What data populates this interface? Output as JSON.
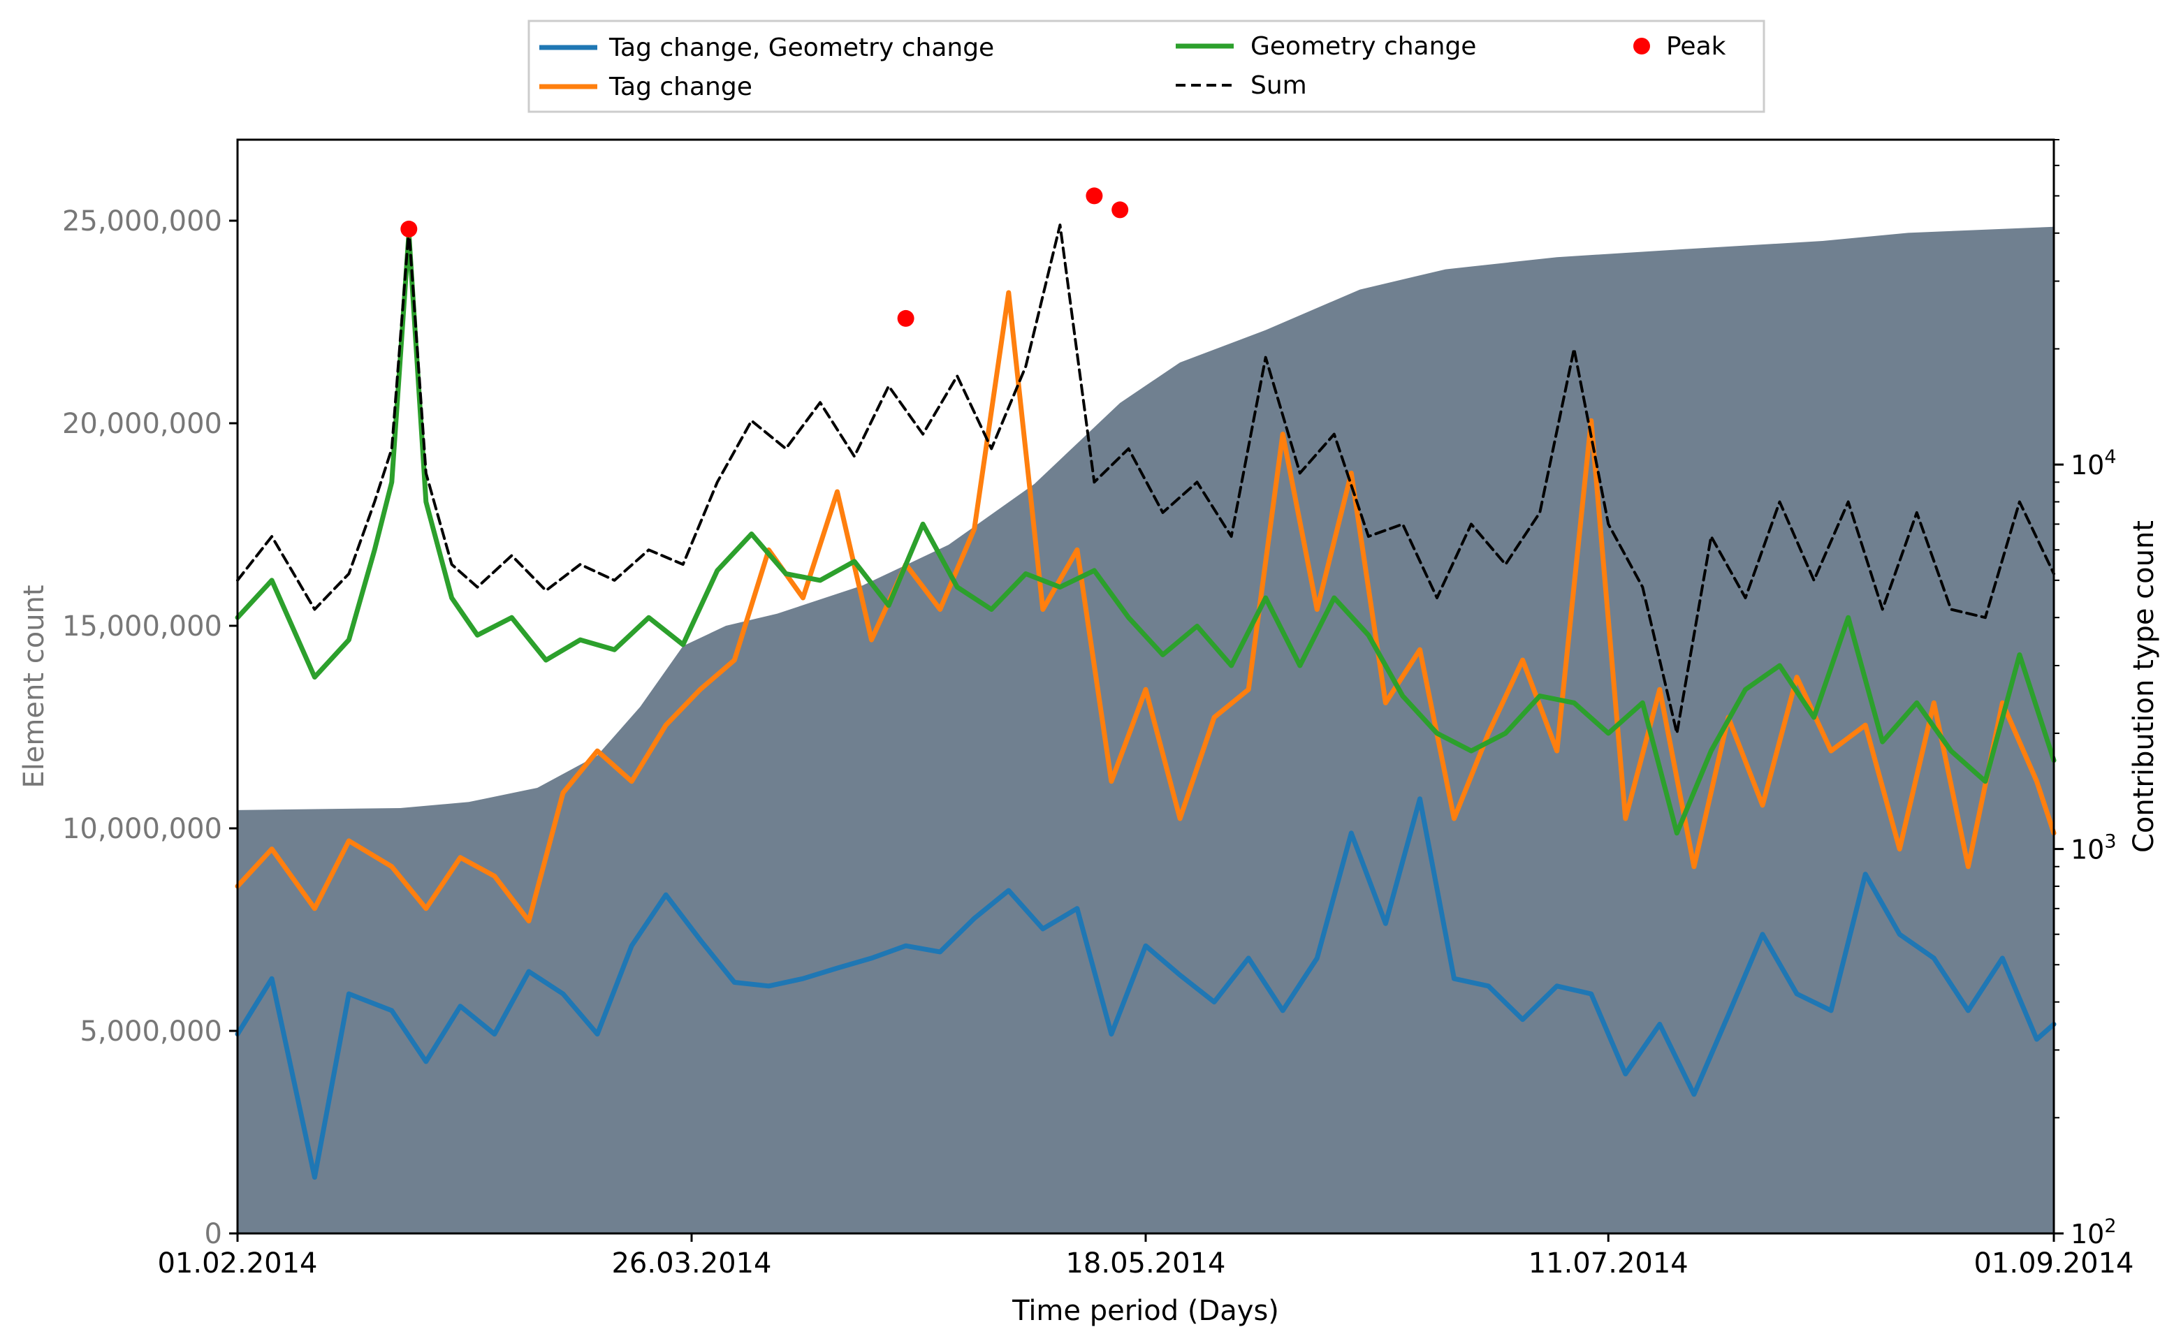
{
  "chart_data": {
    "type": "line",
    "title": "",
    "xlabel": "Time period (Days)",
    "ylabel_left": "Element count",
    "ylabel_right": "Contribution type count",
    "x_start": "01.02.2014",
    "x_end": "01.09.2014",
    "x_ticks": [
      "01.02.2014",
      "26.03.2014",
      "18.05.2014",
      "11.07.2014",
      "01.09.2014"
    ],
    "y_left_lim": [
      0,
      27000000
    ],
    "y_left_ticks": [
      0,
      5000000,
      10000000,
      15000000,
      20000000,
      25000000
    ],
    "y_left_tick_labels": [
      "0",
      "5,000,000",
      "10,000,000",
      "15,000,000",
      "20,000,000",
      "25,000,000"
    ],
    "y_right_scale": "log",
    "y_right_lim": [
      100,
      70000
    ],
    "y_right_ticks": [
      100,
      1000,
      10000
    ],
    "y_right_tick_labels": [
      {
        "base": "10",
        "exp": "2"
      },
      {
        "base": "10",
        "exp": "3"
      },
      {
        "base": "10",
        "exp": "4"
      }
    ],
    "legend": {
      "placement": "top, above plot",
      "entries": [
        {
          "label": "Tag change, Geometry change",
          "kind": "line",
          "color": "#1f77b4"
        },
        {
          "label": "Geometry change",
          "kind": "line",
          "color": "#2ca02c"
        },
        {
          "label": "Peak",
          "kind": "marker",
          "color": "#ff0000"
        },
        {
          "label": "Tag change",
          "kind": "line",
          "color": "#ff7f0e"
        },
        {
          "label": "Sum",
          "kind": "dashed",
          "color": "#000000"
        }
      ]
    },
    "area": {
      "name": "Element count",
      "axis": "left",
      "color": "#708090",
      "points": [
        [
          "01.02.2014",
          10450000
        ],
        [
          "20.02.2014",
          10500000
        ],
        [
          "28.02.2014",
          10650000
        ],
        [
          "08.03.2014",
          11000000
        ],
        [
          "15.03.2014",
          11800000
        ],
        [
          "20.03.2014",
          13000000
        ],
        [
          "25.03.2014",
          14500000
        ],
        [
          "30.03.2014",
          15000000
        ],
        [
          "05.04.2014",
          15300000
        ],
        [
          "15.04.2014",
          16000000
        ],
        [
          "25.04.2014",
          17000000
        ],
        [
          "05.05.2014",
          18500000
        ],
        [
          "15.05.2014",
          20500000
        ],
        [
          "22.05.2014",
          21500000
        ],
        [
          "01.06.2014",
          22300000
        ],
        [
          "12.06.2014",
          23300000
        ],
        [
          "22.06.2014",
          23800000
        ],
        [
          "05.07.2014",
          24100000
        ],
        [
          "20.07.2014",
          24300000
        ],
        [
          "05.08.2014",
          24500000
        ],
        [
          "15.08.2014",
          24700000
        ],
        [
          "01.09.2014",
          24850000
        ]
      ]
    },
    "series": [
      {
        "name": "Tag change, Geometry change",
        "axis": "right",
        "color": "#1f77b4",
        "style": "solid",
        "points": [
          [
            "01.02.2014",
            330
          ],
          [
            "05.02.2014",
            460
          ],
          [
            "10.02.2014",
            140
          ],
          [
            "14.02.2014",
            420
          ],
          [
            "19.02.2014",
            380
          ],
          [
            "23.02.2014",
            280
          ],
          [
            "27.02.2014",
            390
          ],
          [
            "03.03.2014",
            330
          ],
          [
            "07.03.2014",
            480
          ],
          [
            "11.03.2014",
            420
          ],
          [
            "15.03.2014",
            330
          ],
          [
            "19.03.2014",
            560
          ],
          [
            "23.03.2014",
            760
          ],
          [
            "27.03.2014",
            580
          ],
          [
            "31.03.2014",
            450
          ],
          [
            "04.04.2014",
            440
          ],
          [
            "08.04.2014",
            460
          ],
          [
            "12.04.2014",
            490
          ],
          [
            "16.04.2014",
            520
          ],
          [
            "20.04.2014",
            560
          ],
          [
            "24.04.2014",
            540
          ],
          [
            "28.04.2014",
            660
          ],
          [
            "02.05.2014",
            780
          ],
          [
            "06.05.2014",
            620
          ],
          [
            "10.05.2014",
            700
          ],
          [
            "14.05.2014",
            330
          ],
          [
            "18.05.2014",
            560
          ],
          [
            "22.05.2014",
            470
          ],
          [
            "26.05.2014",
            400
          ],
          [
            "30.05.2014",
            520
          ],
          [
            "03.06.2014",
            380
          ],
          [
            "07.06.2014",
            520
          ],
          [
            "11.06.2014",
            1100
          ],
          [
            "15.06.2014",
            640
          ],
          [
            "19.06.2014",
            1350
          ],
          [
            "23.06.2014",
            460
          ],
          [
            "27.06.2014",
            440
          ],
          [
            "01.07.2014",
            360
          ],
          [
            "05.07.2014",
            440
          ],
          [
            "09.07.2014",
            420
          ],
          [
            "13.07.2014",
            260
          ],
          [
            "17.07.2014",
            350
          ],
          [
            "21.07.2014",
            230
          ],
          [
            "25.07.2014",
            370
          ],
          [
            "29.07.2014",
            600
          ],
          [
            "02.08.2014",
            420
          ],
          [
            "06.08.2014",
            380
          ],
          [
            "10.08.2014",
            860
          ],
          [
            "14.08.2014",
            600
          ],
          [
            "18.08.2014",
            520
          ],
          [
            "22.08.2014",
            380
          ],
          [
            "26.08.2014",
            520
          ],
          [
            "30.08.2014",
            320
          ],
          [
            "01.09.2014",
            350
          ]
        ]
      },
      {
        "name": "Tag change",
        "axis": "right",
        "color": "#ff7f0e",
        "style": "solid",
        "points": [
          [
            "01.02.2014",
            800
          ],
          [
            "05.02.2014",
            1000
          ],
          [
            "10.02.2014",
            700
          ],
          [
            "14.02.2014",
            1050
          ],
          [
            "19.02.2014",
            900
          ],
          [
            "23.02.2014",
            700
          ],
          [
            "27.02.2014",
            950
          ],
          [
            "03.03.2014",
            850
          ],
          [
            "07.03.2014",
            650
          ],
          [
            "11.03.2014",
            1400
          ],
          [
            "15.03.2014",
            1800
          ],
          [
            "19.03.2014",
            1500
          ],
          [
            "23.03.2014",
            2100
          ],
          [
            "27.03.2014",
            2600
          ],
          [
            "31.03.2014",
            3100
          ],
          [
            "04.04.2014",
            6000
          ],
          [
            "08.04.2014",
            4500
          ],
          [
            "12.04.2014",
            8500
          ],
          [
            "16.04.2014",
            3500
          ],
          [
            "20.04.2014",
            5500
          ],
          [
            "24.04.2014",
            4200
          ],
          [
            "28.04.2014",
            6800
          ],
          [
            "02.05.2014",
            28000
          ],
          [
            "06.05.2014",
            4200
          ],
          [
            "10.05.2014",
            6000
          ],
          [
            "14.05.2014",
            1500
          ],
          [
            "18.05.2014",
            2600
          ],
          [
            "22.05.2014",
            1200
          ],
          [
            "26.05.2014",
            2200
          ],
          [
            "30.05.2014",
            2600
          ],
          [
            "03.06.2014",
            12000
          ],
          [
            "07.06.2014",
            4200
          ],
          [
            "11.06.2014",
            9500
          ],
          [
            "15.06.2014",
            2400
          ],
          [
            "19.06.2014",
            3300
          ],
          [
            "23.06.2014",
            1200
          ],
          [
            "27.06.2014",
            2000
          ],
          [
            "01.07.2014",
            3100
          ],
          [
            "05.07.2014",
            1800
          ],
          [
            "09.07.2014",
            13000
          ],
          [
            "13.07.2014",
            1200
          ],
          [
            "17.07.2014",
            2600
          ],
          [
            "21.07.2014",
            900
          ],
          [
            "25.07.2014",
            2200
          ],
          [
            "29.07.2014",
            1300
          ],
          [
            "02.08.2014",
            2800
          ],
          [
            "06.08.2014",
            1800
          ],
          [
            "10.08.2014",
            2100
          ],
          [
            "14.08.2014",
            1000
          ],
          [
            "18.08.2014",
            2400
          ],
          [
            "22.08.2014",
            900
          ],
          [
            "26.08.2014",
            2400
          ],
          [
            "30.08.2014",
            1500
          ],
          [
            "01.09.2014",
            1100
          ]
        ]
      },
      {
        "name": "Geometry change",
        "axis": "right",
        "color": "#2ca02c",
        "style": "solid",
        "points": [
          [
            "01.02.2014",
            4000
          ],
          [
            "05.02.2014",
            5000
          ],
          [
            "10.02.2014",
            2800
          ],
          [
            "14.02.2014",
            3500
          ],
          [
            "17.02.2014",
            6000
          ],
          [
            "19.02.2014",
            9000
          ],
          [
            "21.02.2014",
            40000
          ],
          [
            "23.02.2014",
            8000
          ],
          [
            "26.02.2014",
            4500
          ],
          [
            "01.03.2014",
            3600
          ],
          [
            "05.03.2014",
            4000
          ],
          [
            "09.03.2014",
            3100
          ],
          [
            "13.03.2014",
            3500
          ],
          [
            "17.03.2014",
            3300
          ],
          [
            "21.03.2014",
            4000
          ],
          [
            "25.03.2014",
            3400
          ],
          [
            "29.03.2014",
            5300
          ],
          [
            "02.04.2014",
            6600
          ],
          [
            "06.04.2014",
            5200
          ],
          [
            "10.04.2014",
            5000
          ],
          [
            "14.04.2014",
            5600
          ],
          [
            "18.04.2014",
            4300
          ],
          [
            "22.04.2014",
            7000
          ],
          [
            "26.04.2014",
            4800
          ],
          [
            "30.04.2014",
            4200
          ],
          [
            "04.05.2014",
            5200
          ],
          [
            "08.05.2014",
            4800
          ],
          [
            "12.05.2014",
            5300
          ],
          [
            "16.05.2014",
            4000
          ],
          [
            "20.05.2014",
            3200
          ],
          [
            "24.05.2014",
            3800
          ],
          [
            "28.05.2014",
            3000
          ],
          [
            "01.06.2014",
            4500
          ],
          [
            "05.06.2014",
            3000
          ],
          [
            "09.06.2014",
            4500
          ],
          [
            "13.06.2014",
            3600
          ],
          [
            "17.06.2014",
            2500
          ],
          [
            "21.06.2014",
            2000
          ],
          [
            "25.06.2014",
            1800
          ],
          [
            "29.06.2014",
            2000
          ],
          [
            "03.07.2014",
            2500
          ],
          [
            "07.07.2014",
            2400
          ],
          [
            "11.07.2014",
            2000
          ],
          [
            "15.07.2014",
            2400
          ],
          [
            "19.07.2014",
            1100
          ],
          [
            "23.07.2014",
            1800
          ],
          [
            "27.07.2014",
            2600
          ],
          [
            "31.07.2014",
            3000
          ],
          [
            "04.08.2014",
            2200
          ],
          [
            "08.08.2014",
            4000
          ],
          [
            "12.08.2014",
            1900
          ],
          [
            "16.08.2014",
            2400
          ],
          [
            "20.08.2014",
            1800
          ],
          [
            "24.08.2014",
            1500
          ],
          [
            "28.08.2014",
            3200
          ],
          [
            "01.09.2014",
            1700
          ]
        ]
      },
      {
        "name": "Sum",
        "axis": "right",
        "color": "#000000",
        "style": "dashed",
        "points": [
          [
            "01.02.2014",
            5000
          ],
          [
            "05.02.2014",
            6500
          ],
          [
            "10.02.2014",
            4200
          ],
          [
            "14.02.2014",
            5200
          ],
          [
            "17.02.2014",
            8000
          ],
          [
            "19.02.2014",
            11000
          ],
          [
            "21.02.2014",
            41000
          ],
          [
            "23.02.2014",
            9500
          ],
          [
            "26.02.2014",
            5500
          ],
          [
            "01.03.2014",
            4800
          ],
          [
            "05.03.2014",
            5800
          ],
          [
            "09.03.2014",
            4700
          ],
          [
            "13.03.2014",
            5500
          ],
          [
            "17.03.2014",
            5000
          ],
          [
            "21.03.2014",
            6000
          ],
          [
            "25.03.2014",
            5500
          ],
          [
            "29.03.2014",
            9000
          ],
          [
            "02.04.2014",
            13000
          ],
          [
            "06.04.2014",
            11000
          ],
          [
            "10.04.2014",
            14500
          ],
          [
            "14.04.2014",
            10500
          ],
          [
            "18.04.2014",
            16000
          ],
          [
            "22.04.2014",
            12000
          ],
          [
            "26.04.2014",
            17000
          ],
          [
            "30.04.2014",
            11000
          ],
          [
            "04.05.2014",
            18000
          ],
          [
            "08.05.2014",
            42000
          ],
          [
            "12.05.2014",
            9000
          ],
          [
            "16.05.2014",
            11000
          ],
          [
            "20.05.2014",
            7500
          ],
          [
            "24.05.2014",
            9000
          ],
          [
            "28.05.2014",
            6500
          ],
          [
            "01.06.2014",
            19000
          ],
          [
            "05.06.2014",
            9500
          ],
          [
            "09.06.2014",
            12000
          ],
          [
            "13.06.2014",
            6500
          ],
          [
            "17.06.2014",
            7000
          ],
          [
            "21.06.2014",
            4500
          ],
          [
            "25.06.2014",
            7000
          ],
          [
            "29.06.2014",
            5500
          ],
          [
            "03.07.2014",
            7500
          ],
          [
            "07.07.2014",
            20000
          ],
          [
            "11.07.2014",
            7000
          ],
          [
            "15.07.2014",
            4800
          ],
          [
            "19.07.2014",
            2000
          ],
          [
            "23.07.2014",
            6500
          ],
          [
            "27.07.2014",
            4500
          ],
          [
            "31.07.2014",
            8000
          ],
          [
            "04.08.2014",
            5000
          ],
          [
            "08.08.2014",
            8000
          ],
          [
            "12.08.2014",
            4200
          ],
          [
            "16.08.2014",
            7500
          ],
          [
            "20.08.2014",
            4200
          ],
          [
            "24.08.2014",
            4000
          ],
          [
            "28.08.2014",
            8000
          ],
          [
            "01.09.2014",
            5200
          ]
        ]
      }
    ],
    "peaks": [
      {
        "x": "21.02.2014",
        "y": 41000
      },
      {
        "x": "20.04.2014",
        "y": 24000
      },
      {
        "x": "12.05.2014",
        "y": 50000
      },
      {
        "x": "15.05.2014",
        "y": 46000
      }
    ]
  }
}
